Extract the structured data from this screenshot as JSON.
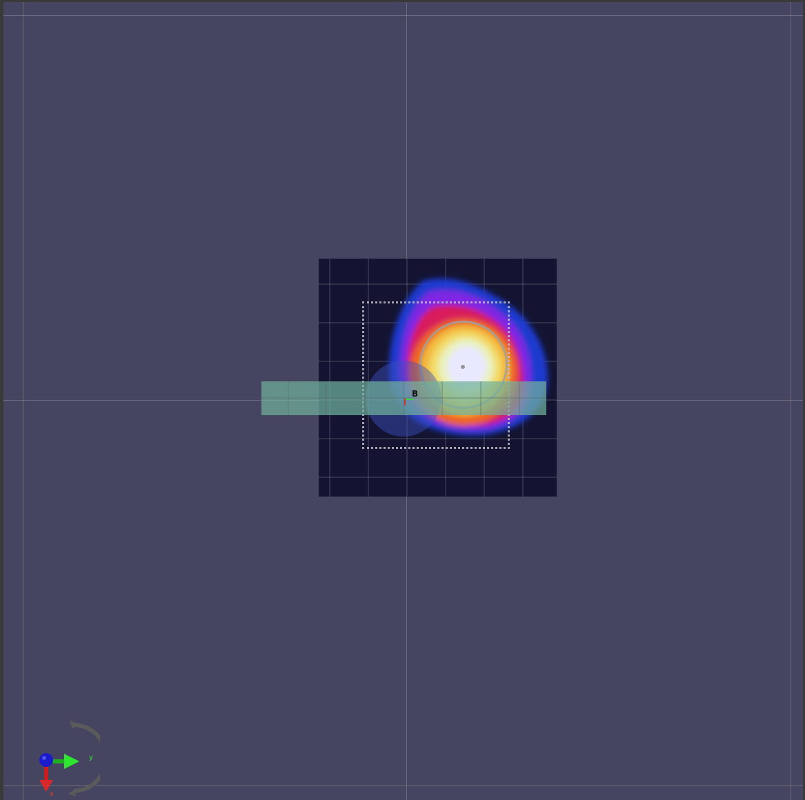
{
  "viewport": {
    "background_color": "#454562",
    "map_background_color": "#141432",
    "laser_color": "#70b09b",
    "goal_region_style": "dotted",
    "robot_marker_label": "B"
  },
  "axes_gizmo": {
    "x_label": "x",
    "y_label": "y",
    "x_color": "#e03a2a",
    "y_color": "#2ee62e",
    "z_color": "#1a1acc",
    "rotation_icon": "orbit-arrows-icon"
  },
  "heatmap": {
    "colormap": [
      "#1c3ee0",
      "#a020e0",
      "#e02040",
      "#f06a20",
      "#f2e060",
      "#e8f0d0",
      "#e8e8ff"
    ]
  }
}
